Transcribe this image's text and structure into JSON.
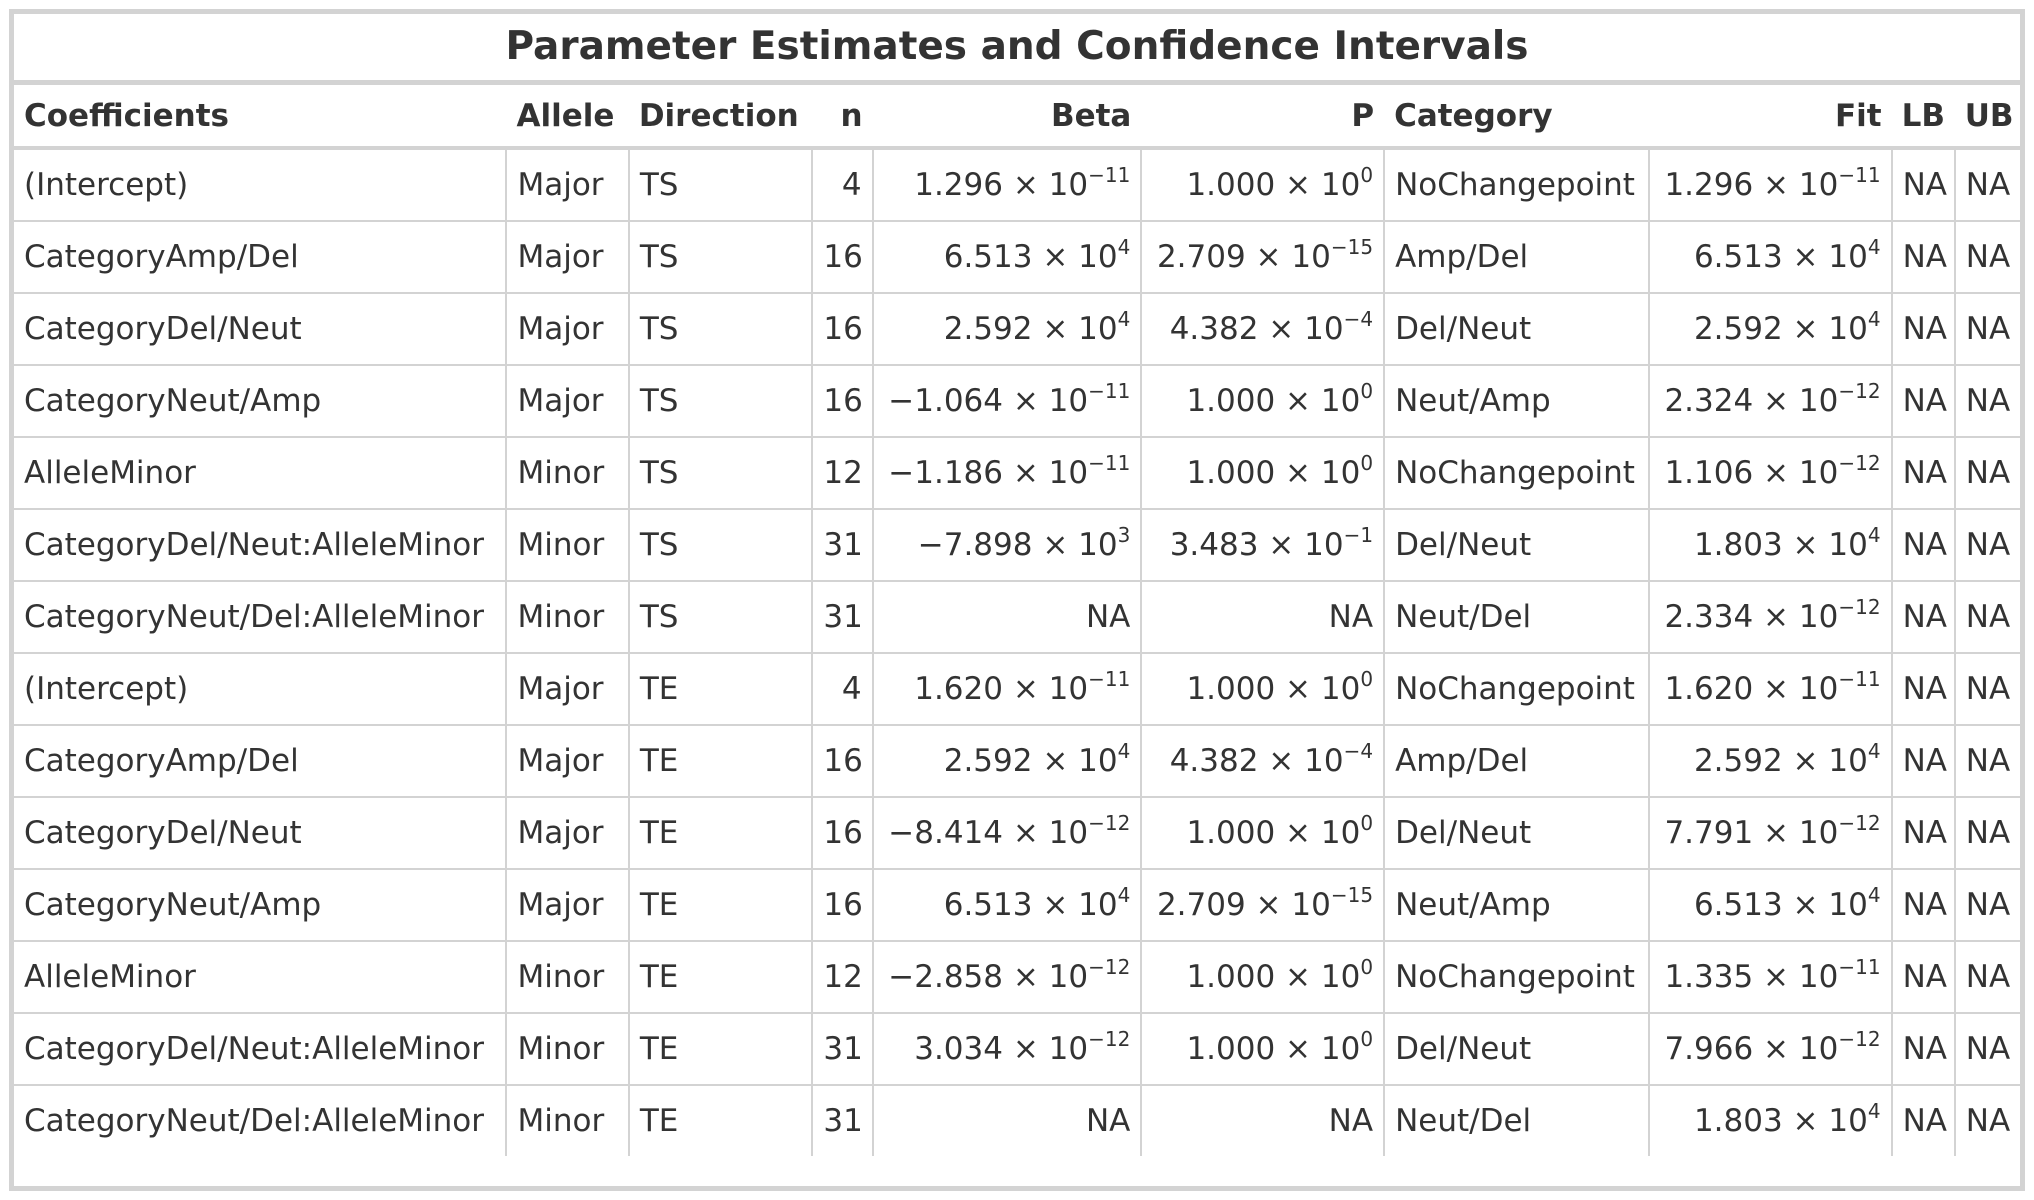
{
  "table": {
    "title": "Parameter Estimates and Confidence Intervals",
    "columns": [
      {
        "key": "coef",
        "label": "Coefficients",
        "align": "l"
      },
      {
        "key": "allele",
        "label": "Allele",
        "align": "l"
      },
      {
        "key": "direction",
        "label": "Direction",
        "align": "l"
      },
      {
        "key": "n",
        "label": "n",
        "align": "r"
      },
      {
        "key": "beta",
        "label": "Beta",
        "align": "r"
      },
      {
        "key": "p",
        "label": "P",
        "align": "r"
      },
      {
        "key": "category",
        "label": "Category",
        "align": "l"
      },
      {
        "key": "fit",
        "label": "Fit",
        "align": "r"
      },
      {
        "key": "lb",
        "label": "LB",
        "align": "r"
      },
      {
        "key": "ub",
        "label": "UB",
        "align": "r"
      }
    ],
    "rows": [
      {
        "coef": "(Intercept)",
        "allele": "Major",
        "direction": "TS",
        "n": "4",
        "beta": "1.296 × 10^−11",
        "p": "1.000 × 10^0",
        "category": "NoChangepoint",
        "fit": "1.296 × 10^−11",
        "lb": "NA",
        "ub": "NA"
      },
      {
        "coef": "CategoryAmp/Del",
        "allele": "Major",
        "direction": "TS",
        "n": "16",
        "beta": "6.513 × 10^4",
        "p": "2.709 × 10^−15",
        "category": "Amp/Del",
        "fit": "6.513 × 10^4",
        "lb": "NA",
        "ub": "NA"
      },
      {
        "coef": "CategoryDel/Neut",
        "allele": "Major",
        "direction": "TS",
        "n": "16",
        "beta": "2.592 × 10^4",
        "p": "4.382 × 10^−4",
        "category": "Del/Neut",
        "fit": "2.592 × 10^4",
        "lb": "NA",
        "ub": "NA"
      },
      {
        "coef": "CategoryNeut/Amp",
        "allele": "Major",
        "direction": "TS",
        "n": "16",
        "beta": "−1.064 × 10^−11",
        "p": "1.000 × 10^0",
        "category": "Neut/Amp",
        "fit": "2.324 × 10^−12",
        "lb": "NA",
        "ub": "NA"
      },
      {
        "coef": "AlleleMinor",
        "allele": "Minor",
        "direction": "TS",
        "n": "12",
        "beta": "−1.186 × 10^−11",
        "p": "1.000 × 10^0",
        "category": "NoChangepoint",
        "fit": "1.106 × 10^−12",
        "lb": "NA",
        "ub": "NA"
      },
      {
        "coef": "CategoryDel/Neut:AlleleMinor",
        "allele": "Minor",
        "direction": "TS",
        "n": "31",
        "beta": "−7.898 × 10^3",
        "p": "3.483 × 10^−1",
        "category": "Del/Neut",
        "fit": "1.803 × 10^4",
        "lb": "NA",
        "ub": "NA"
      },
      {
        "coef": "CategoryNeut/Del:AlleleMinor",
        "allele": "Minor",
        "direction": "TS",
        "n": "31",
        "beta": "NA",
        "p": "NA",
        "category": "Neut/Del",
        "fit": "2.334 × 10^−12",
        "lb": "NA",
        "ub": "NA"
      },
      {
        "coef": "(Intercept)",
        "allele": "Major",
        "direction": "TE",
        "n": "4",
        "beta": "1.620 × 10^−11",
        "p": "1.000 × 10^0",
        "category": "NoChangepoint",
        "fit": "1.620 × 10^−11",
        "lb": "NA",
        "ub": "NA"
      },
      {
        "coef": "CategoryAmp/Del",
        "allele": "Major",
        "direction": "TE",
        "n": "16",
        "beta": "2.592 × 10^4",
        "p": "4.382 × 10^−4",
        "category": "Amp/Del",
        "fit": "2.592 × 10^4",
        "lb": "NA",
        "ub": "NA"
      },
      {
        "coef": "CategoryDel/Neut",
        "allele": "Major",
        "direction": "TE",
        "n": "16",
        "beta": "−8.414 × 10^−12",
        "p": "1.000 × 10^0",
        "category": "Del/Neut",
        "fit": "7.791 × 10^−12",
        "lb": "NA",
        "ub": "NA"
      },
      {
        "coef": "CategoryNeut/Amp",
        "allele": "Major",
        "direction": "TE",
        "n": "16",
        "beta": "6.513 × 10^4",
        "p": "2.709 × 10^−15",
        "category": "Neut/Amp",
        "fit": "6.513 × 10^4",
        "lb": "NA",
        "ub": "NA"
      },
      {
        "coef": "AlleleMinor",
        "allele": "Minor",
        "direction": "TE",
        "n": "12",
        "beta": "−2.858 × 10^−12",
        "p": "1.000 × 10^0",
        "category": "NoChangepoint",
        "fit": "1.335 × 10^−11",
        "lb": "NA",
        "ub": "NA"
      },
      {
        "coef": "CategoryDel/Neut:AlleleMinor",
        "allele": "Minor",
        "direction": "TE",
        "n": "31",
        "beta": "3.034 × 10^−12",
        "p": "1.000 × 10^0",
        "category": "Del/Neut",
        "fit": "7.966 × 10^−12",
        "lb": "NA",
        "ub": "NA"
      },
      {
        "coef": "CategoryNeut/Del:AlleleMinor",
        "allele": "Minor",
        "direction": "TE",
        "n": "31",
        "beta": "NA",
        "p": "NA",
        "category": "Neut/Del",
        "fit": "1.803 × 10^4",
        "lb": "NA",
        "ub": "NA"
      }
    ]
  }
}
